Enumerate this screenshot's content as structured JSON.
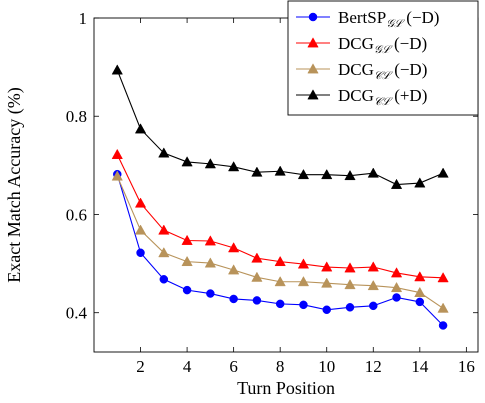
{
  "chart_data": {
    "type": "line",
    "title": "",
    "xlabel": "Turn Position",
    "ylabel": "Exact Match Accuracy (%)",
    "xlim": [
      0,
      16.5
    ],
    "ylim": [
      0.32,
      1.0
    ],
    "xticks": [
      2,
      4,
      6,
      8,
      10,
      12,
      14,
      16
    ],
    "xtick_labels": [
      "2",
      "4",
      "6",
      "8",
      "10",
      "12",
      "14",
      "16"
    ],
    "yticks": [
      0.4,
      0.6,
      0.8,
      1.0
    ],
    "ytick_labels": [
      "0.4",
      "0.6",
      "0.8",
      "1"
    ],
    "grid": false,
    "legend_position": "top-right",
    "x": [
      1,
      2,
      3,
      4,
      5,
      6,
      7,
      8,
      9,
      10,
      11,
      12,
      13,
      14,
      15
    ],
    "series": [
      {
        "name": "BertSP",
        "name_subscript": "𝒢ℒ",
        "name_suffix": " (−D)",
        "color": "#0000ff",
        "marker": "circle",
        "values": [
          0.682,
          0.522,
          0.468,
          0.446,
          0.439,
          0.428,
          0.425,
          0.418,
          0.416,
          0.406,
          0.411,
          0.414,
          0.431,
          0.422,
          0.374
        ]
      },
      {
        "name": "DCG",
        "name_subscript": "𝒢ℒ",
        "name_suffix": " (−D)",
        "color": "#ff0000",
        "marker": "triangle",
        "values": [
          0.722,
          0.623,
          0.568,
          0.547,
          0.546,
          0.532,
          0.511,
          0.504,
          0.499,
          0.493,
          0.491,
          0.493,
          0.481,
          0.473,
          0.471
        ]
      },
      {
        "name": "DCG",
        "name_subscript": "𝒞ℒ",
        "name_suffix": " (−D)",
        "color": "#b8935a",
        "marker": "triangle",
        "values": [
          0.678,
          0.568,
          0.522,
          0.504,
          0.501,
          0.487,
          0.472,
          0.463,
          0.463,
          0.46,
          0.457,
          0.455,
          0.451,
          0.441,
          0.409
        ]
      },
      {
        "name": "DCG",
        "name_subscript": "𝒞ℒ",
        "name_suffix": " (+D)",
        "color": "#000000",
        "marker": "triangle",
        "values": [
          0.894,
          0.774,
          0.725,
          0.707,
          0.703,
          0.697,
          0.686,
          0.688,
          0.681,
          0.681,
          0.679,
          0.684,
          0.661,
          0.664,
          0.684
        ]
      }
    ]
  }
}
